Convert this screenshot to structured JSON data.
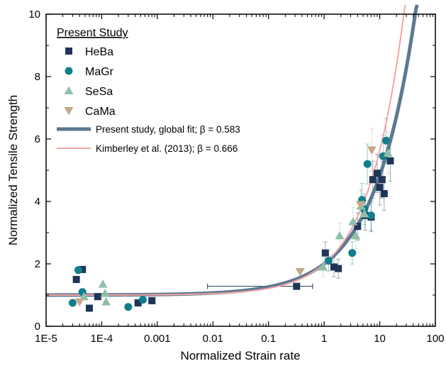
{
  "chart_data": {
    "type": "scatter",
    "xlabel": "Normalized Strain rate",
    "ylabel": "Normalized Tensile Strength",
    "xscale": "log",
    "xlim": [
      1e-05,
      100
    ],
    "ylim": [
      0,
      10
    ],
    "x_ticks": [
      1e-05,
      0.0001,
      0.001,
      0.01,
      0.1,
      1,
      10,
      100
    ],
    "x_tick_labels": [
      "1E-5",
      "1E-4",
      "0.001",
      "0.01",
      "0.1",
      "1",
      "10",
      "100"
    ],
    "y_ticks": [
      0,
      2,
      4,
      6,
      8,
      10
    ],
    "y_tick_labels": [
      "0",
      "2",
      "4",
      "6",
      "8",
      "10"
    ],
    "grid": false,
    "legend": {
      "title": "Present Study",
      "placement": "top-left",
      "entries": [
        "HeBa",
        "MaGr",
        "SeSa",
        "CaMa",
        "Present study, global fit; β = 0.583",
        "Kimberley et al. (2013); β = 0.666"
      ]
    },
    "series": [
      {
        "name": "HeBa",
        "marker": "square",
        "color": "#1f3558",
        "points": [
          {
            "x": 3.5e-05,
            "y": 1.5
          },
          {
            "x": 4.5e-05,
            "y": 1.82
          },
          {
            "x": 6e-05,
            "y": 0.58
          },
          {
            "x": 8.5e-05,
            "y": 0.95
          },
          {
            "x": 0.00045,
            "y": 0.75
          },
          {
            "x": 0.0008,
            "y": 0.82
          },
          {
            "x": 0.32,
            "y": 1.28,
            "xerr": [
              0.008,
              0.62
            ]
          },
          {
            "x": 1.05,
            "y": 2.35
          },
          {
            "x": 1.5,
            "y": 1.9
          },
          {
            "x": 1.8,
            "y": 1.85
          },
          {
            "x": 4.0,
            "y": 3.2
          },
          {
            "x": 5.5,
            "y": 3.55
          },
          {
            "x": 7.0,
            "y": 3.5
          },
          {
            "x": 7.5,
            "y": 4.7
          },
          {
            "x": 9.0,
            "y": 4.9
          },
          {
            "x": 10.0,
            "y": 4.45
          },
          {
            "x": 11.0,
            "y": 4.7
          },
          {
            "x": 12.0,
            "y": 4.25
          },
          {
            "x": 15.5,
            "y": 5.3
          }
        ]
      },
      {
        "name": "MaGr",
        "marker": "circle",
        "color": "#107f8c",
        "points": [
          {
            "x": 3e-05,
            "y": 0.75
          },
          {
            "x": 3.8e-05,
            "y": 1.8
          },
          {
            "x": 4.5e-05,
            "y": 1.1
          },
          {
            "x": 0.0003,
            "y": 0.62
          },
          {
            "x": 0.00055,
            "y": 0.85
          },
          {
            "x": 1.2,
            "y": 2.1
          },
          {
            "x": 3.2,
            "y": 2.35
          },
          {
            "x": 4.8,
            "y": 4.05
          },
          {
            "x": 5.3,
            "y": 3.75
          },
          {
            "x": 6.0,
            "y": 5.2
          },
          {
            "x": 7.0,
            "y": 3.55
          },
          {
            "x": 11.5,
            "y": 5.45
          },
          {
            "x": 13.0,
            "y": 5.95
          }
        ]
      },
      {
        "name": "SeSa",
        "marker": "triangle-up",
        "color": "#8fbfa8",
        "points": [
          {
            "x": 4.8e-05,
            "y": 0.95
          },
          {
            "x": 0.000105,
            "y": 1.35
          },
          {
            "x": 0.000115,
            "y": 1.05
          },
          {
            "x": 0.00012,
            "y": 0.78
          },
          {
            "x": 0.95,
            "y": 1.9
          },
          {
            "x": 1.9,
            "y": 2.9
          },
          {
            "x": 3.3,
            "y": 3.35
          },
          {
            "x": 3.7,
            "y": 2.9
          },
          {
            "x": 4.6,
            "y": 3.85
          },
          {
            "x": 5.3,
            "y": 3.6
          },
          {
            "x": 14.0,
            "y": 5.55
          }
        ]
      },
      {
        "name": "CaMa",
        "marker": "triangle-down",
        "color": "#c4a887",
        "points": [
          {
            "x": 4e-05,
            "y": 0.78
          },
          {
            "x": 0.37,
            "y": 1.75
          },
          {
            "x": 4.5,
            "y": 3.9
          },
          {
            "x": 7.2,
            "y": 5.65
          }
        ]
      }
    ],
    "curves": [
      {
        "name": "Present study, global fit; β = 0.583",
        "color": "#5d7891",
        "beta": 0.583
      },
      {
        "name": "Kimberley et al. (2013); β = 0.666",
        "color": "#f4a4a4",
        "beta": 0.666
      }
    ]
  }
}
